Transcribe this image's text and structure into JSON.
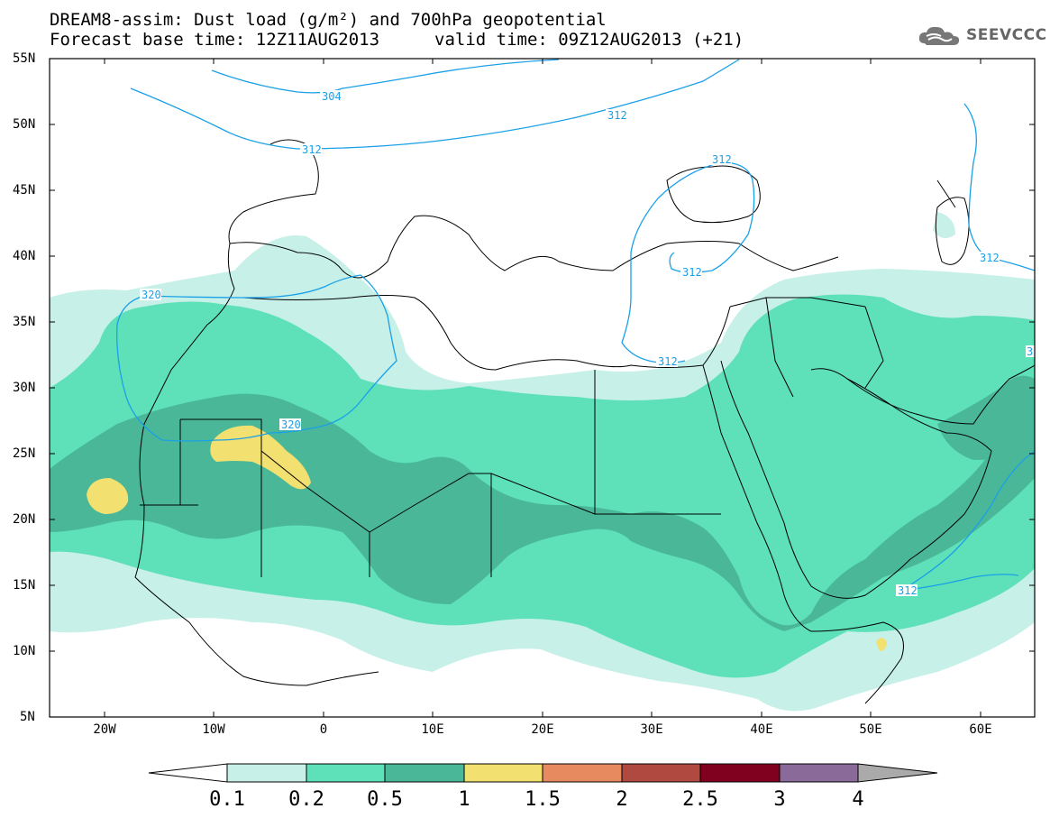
{
  "title": {
    "line1": "DREAM8-assim: Dust load (g/m²) and 700hPa geopotential",
    "line2": "Forecast base time: 12Z11AUG2013",
    "valid": "valid time: 09Z12AUG2013 (+21)"
  },
  "logo": {
    "icon": "cloud-logo-icon",
    "text": "SEEVCCC"
  },
  "axes": {
    "lat_labels": [
      "55N",
      "50N",
      "45N",
      "40N",
      "35N",
      "30N",
      "25N",
      "20N",
      "15N",
      "10N",
      "5N"
    ],
    "lon_labels": [
      "20W",
      "10W",
      "0",
      "10E",
      "20E",
      "30E",
      "40E",
      "50E",
      "60E"
    ]
  },
  "contours": {
    "labels": [
      "304",
      "312",
      "312",
      "312",
      "312",
      "312",
      "312",
      "312",
      "320",
      "320",
      "3"
    ]
  },
  "colorbar": {
    "levels": [
      "0.1",
      "0.2",
      "0.5",
      "1",
      "1.5",
      "2",
      "2.5",
      "3",
      "4"
    ],
    "colors": [
      "#ffffff",
      "#c6f0e8",
      "#5ee0b8",
      "#4ab898",
      "#f2e070",
      "#e88a60",
      "#b04a40",
      "#800020",
      "#8a6a98",
      "#aaaaaa"
    ]
  }
}
